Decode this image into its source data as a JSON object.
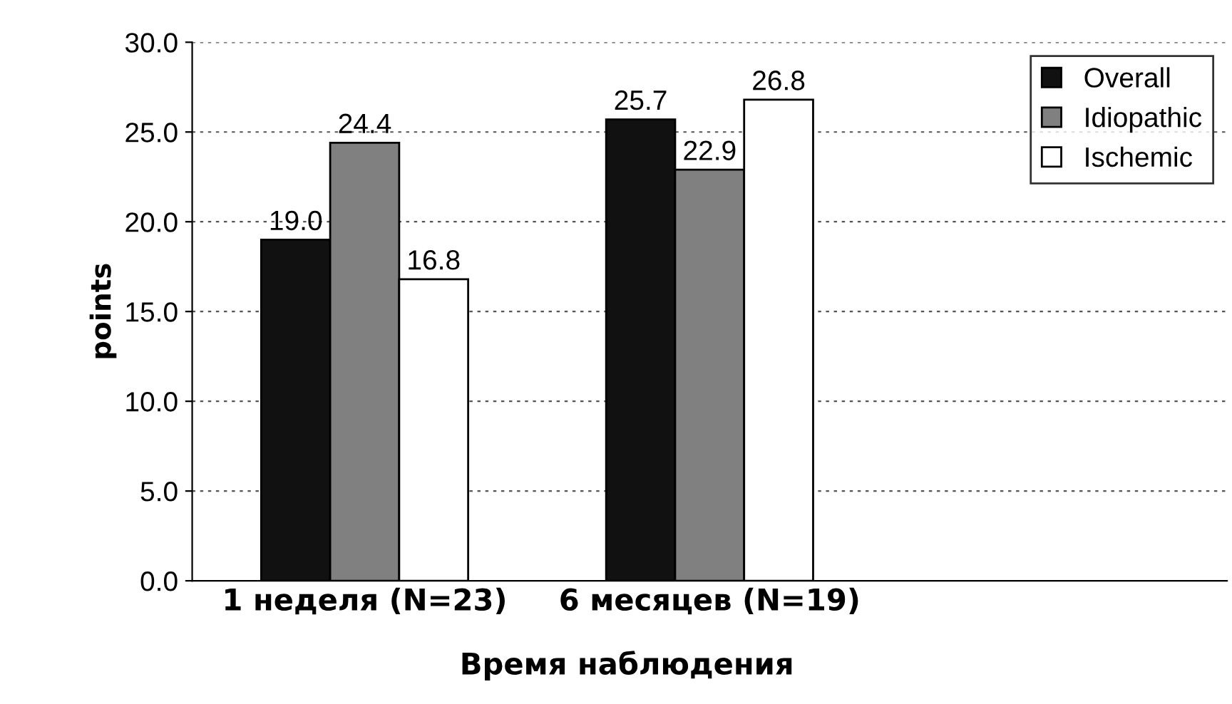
{
  "chart_data": {
    "type": "bar",
    "ylabel": "points",
    "xlabel": "Время наблюдения",
    "categories": [
      "1 неделя (N=23)",
      "6 месяцев (N=19)",
      null
    ],
    "series": [
      {
        "name": "Overall",
        "color": "#111111",
        "values": [
          19.0,
          25.7,
          null
        ],
        "value_labels": [
          "19.0",
          "25.7",
          null
        ]
      },
      {
        "name": "Idiopathic",
        "color": "#808080",
        "values": [
          24.4,
          22.9,
          null
        ],
        "value_labels": [
          "24.4",
          "22.9",
          null
        ]
      },
      {
        "name": "Ischemic",
        "color": "#ffffff",
        "values": [
          16.8,
          26.8,
          null
        ],
        "value_labels": [
          "16.8",
          "26.8",
          null
        ]
      }
    ],
    "ylim": [
      0,
      30
    ],
    "yticks": [
      {
        "value": 0,
        "label": "0.0"
      },
      {
        "value": 5,
        "label": "5.0"
      },
      {
        "value": 10,
        "label": "10.0"
      },
      {
        "value": 15,
        "label": "15.0"
      },
      {
        "value": 20,
        "label": "20.0"
      },
      {
        "value": 25,
        "label": "25.0"
      },
      {
        "value": 30,
        "label": "30.0"
      }
    ],
    "grid": "y",
    "legend": "top right"
  }
}
